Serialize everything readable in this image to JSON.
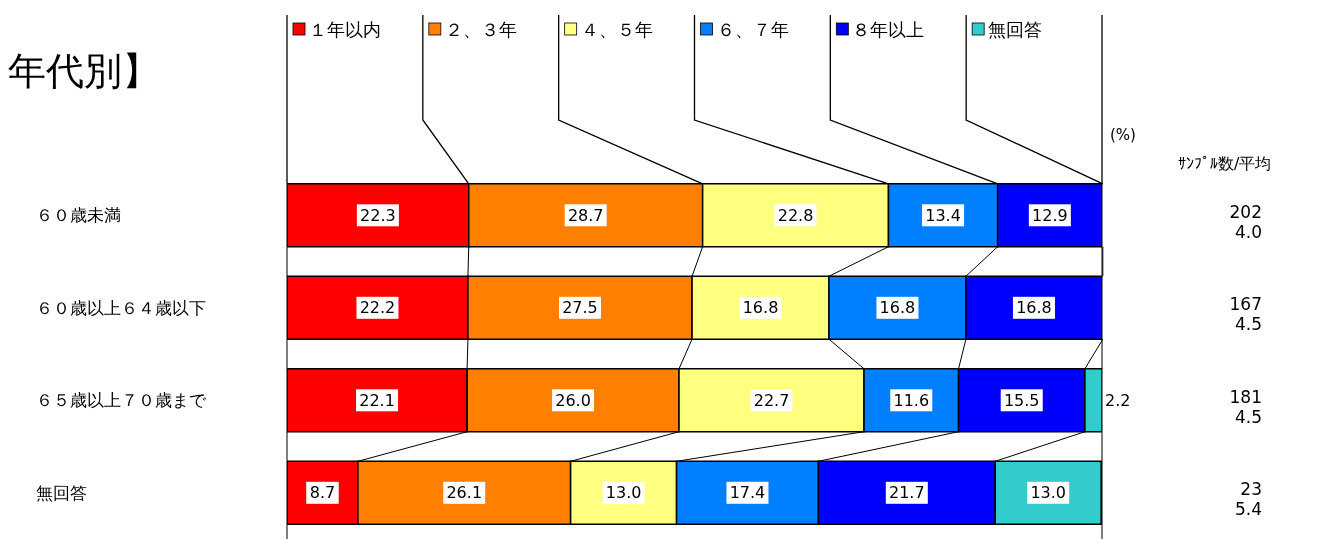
{
  "chart_data": {
    "type": "bar",
    "orientation": "horizontal",
    "stacked": true,
    "title": "年代別】",
    "categories": [
      "６０歳未満",
      "６０歳以上６４歳以下",
      "６５歳以上７０歳まで",
      "無回答"
    ],
    "series": [
      {
        "name": "１年以内",
        "color": "#ff0000",
        "values": [
          22.3,
          22.2,
          22.1,
          8.7
        ],
        "value_labels": [
          "22.3",
          "22.2",
          "22.1",
          "8.7"
        ]
      },
      {
        "name": "２、３年",
        "color": "#ff8000",
        "values": [
          28.7,
          27.5,
          26.0,
          26.1
        ],
        "value_labels": [
          "28.7",
          "27.5",
          "26.0",
          "26.1"
        ]
      },
      {
        "name": "４、５年",
        "color": "#ffff80",
        "values": [
          22.8,
          16.8,
          22.7,
          13.0
        ],
        "value_labels": [
          "22.8",
          "16.8",
          "22.7",
          "13.0"
        ]
      },
      {
        "name": "６、７年",
        "color": "#0080ff",
        "values": [
          13.4,
          16.8,
          11.6,
          17.4
        ],
        "value_labels": [
          "13.4",
          "16.8",
          "11.6",
          "17.4"
        ]
      },
      {
        "name": "８年以上",
        "color": "#0000ff",
        "values": [
          12.9,
          16.8,
          15.5,
          21.7
        ],
        "value_labels": [
          "12.9",
          "16.8",
          "15.5",
          "21.7"
        ]
      },
      {
        "name": "無回答",
        "color": "#33cccc",
        "values": [
          null,
          null,
          2.2,
          13.0
        ],
        "value_labels": [
          null,
          null,
          "2.2",
          "13.0"
        ]
      }
    ],
    "xlim": [
      0,
      100
    ],
    "legend": "top",
    "annotations": [
      "(%)",
      "ｻﾝﾌﾟﾙ数/平均",
      "202",
      "4.0",
      "167",
      "4.5",
      "181",
      "4.5",
      "23",
      "5.4"
    ]
  }
}
